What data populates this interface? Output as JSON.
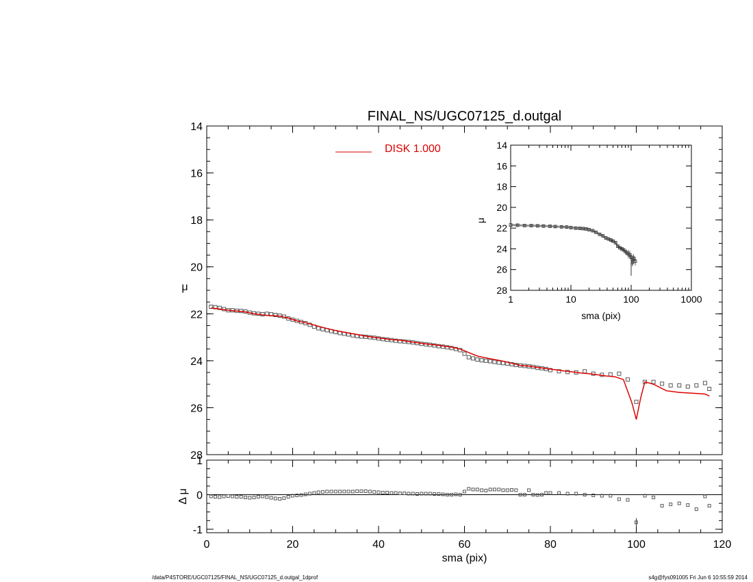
{
  "footer": {
    "left": "/data/P4STORE/UGC07125/FINAL_NS/UGC07125_d.outgal_1dprof",
    "right": "s4g@fys091005  Fri Jun  6 10:55:59 2014"
  },
  "chart_data": [
    {
      "id": "main-profile",
      "type": "scatter",
      "title": "FINAL_NS/UGC07125_d.outgal",
      "xlabel": "",
      "ylabel": "μ",
      "xlim": [
        0,
        120
      ],
      "ylim": [
        28,
        14
      ],
      "y_inverted": true,
      "yticks": [
        14,
        16,
        18,
        20,
        22,
        24,
        26,
        28
      ],
      "xticks": [
        0,
        20,
        40,
        60,
        80,
        100,
        120
      ],
      "legend": {
        "placement": "top-center",
        "entries": [
          {
            "label": "DISK  1.000",
            "color": "#dd0000"
          }
        ]
      },
      "series": [
        {
          "name": "observed",
          "style": "square-marker",
          "color": "#555555",
          "x": [
            1,
            2,
            3,
            4,
            5,
            6,
            7,
            8,
            9,
            10,
            11,
            12,
            13,
            14,
            15,
            16,
            17,
            18,
            19,
            20,
            21,
            22,
            23,
            24,
            25,
            26,
            27,
            28,
            29,
            30,
            31,
            32,
            33,
            34,
            35,
            36,
            37,
            38,
            39,
            40,
            41,
            42,
            43,
            44,
            45,
            46,
            47,
            48,
            49,
            50,
            51,
            52,
            53,
            54,
            55,
            56,
            57,
            58,
            59,
            60,
            61,
            62,
            63,
            64,
            65,
            66,
            67,
            68,
            69,
            70,
            71,
            72,
            73,
            74,
            75,
            76,
            77,
            78,
            79,
            80,
            82,
            84,
            86,
            88,
            90,
            92,
            94,
            96,
            98,
            100,
            102,
            104,
            106,
            108,
            110,
            112,
            114,
            116,
            117
          ],
          "y": [
            21.7,
            21.72,
            21.75,
            21.8,
            21.85,
            21.85,
            21.87,
            21.88,
            21.9,
            21.95,
            21.98,
            22.0,
            22.02,
            22.0,
            22.02,
            22.05,
            22.08,
            22.12,
            22.2,
            22.25,
            22.3,
            22.35,
            22.4,
            22.47,
            22.55,
            22.62,
            22.66,
            22.7,
            22.74,
            22.78,
            22.82,
            22.85,
            22.88,
            22.92,
            22.95,
            22.97,
            22.98,
            23.0,
            23.02,
            23.05,
            23.08,
            23.1,
            23.12,
            23.15,
            23.17,
            23.18,
            23.2,
            23.22,
            23.25,
            23.28,
            23.3,
            23.32,
            23.35,
            23.38,
            23.4,
            23.43,
            23.46,
            23.5,
            23.55,
            23.7,
            23.85,
            23.9,
            23.95,
            23.98,
            24.0,
            24.02,
            24.05,
            24.08,
            24.1,
            24.12,
            24.15,
            24.18,
            24.2,
            24.22,
            24.24,
            24.26,
            24.3,
            24.32,
            24.35,
            24.4,
            24.45,
            24.48,
            24.5,
            24.45,
            24.55,
            24.6,
            24.58,
            24.55,
            24.8,
            25.75,
            24.9,
            24.9,
            24.98,
            25.05,
            25.05,
            25.1,
            25.05,
            24.95,
            25.2
          ]
        },
        {
          "name": "model",
          "style": "line",
          "color": "#dd0000",
          "x": [
            1,
            3,
            5,
            7,
            9,
            11,
            13,
            15,
            17,
            19,
            21,
            23,
            25,
            27,
            29,
            31,
            33,
            35,
            37,
            39,
            41,
            43,
            45,
            47,
            49,
            51,
            53,
            55,
            57,
            59,
            61,
            63,
            65,
            67,
            69,
            71,
            73,
            75,
            77,
            79,
            81,
            83,
            85,
            87,
            89,
            91,
            93,
            95,
            97,
            99,
            100,
            101,
            102,
            104,
            107,
            110,
            113,
            116,
            117
          ],
          "y": [
            21.75,
            21.8,
            21.85,
            21.88,
            21.92,
            22.0,
            22.05,
            22.08,
            22.1,
            22.18,
            22.3,
            22.38,
            22.48,
            22.58,
            22.67,
            22.75,
            22.82,
            22.88,
            22.95,
            23.0,
            23.05,
            23.1,
            23.12,
            23.18,
            23.23,
            23.28,
            23.32,
            23.37,
            23.42,
            23.5,
            23.65,
            23.8,
            23.88,
            23.95,
            24.02,
            24.1,
            24.2,
            24.23,
            24.28,
            24.33,
            24.38,
            24.43,
            24.47,
            24.52,
            24.55,
            24.6,
            24.65,
            24.68,
            24.8,
            25.8,
            26.5,
            25.6,
            24.9,
            25.0,
            25.28,
            25.35,
            25.38,
            25.42,
            25.5
          ]
        }
      ]
    },
    {
      "id": "inset-log",
      "type": "scatter",
      "title": "",
      "xlabel": "sma (pix)",
      "ylabel": "μ",
      "xscale": "log",
      "xlim": [
        1,
        1000
      ],
      "ylim": [
        28,
        14
      ],
      "y_inverted": true,
      "xticks": [
        1,
        10,
        100,
        1000
      ],
      "yticks": [
        14,
        16,
        18,
        20,
        22,
        24,
        26,
        28
      ],
      "series": [
        {
          "name": "observed",
          "style": "square-marker-with-errorbars",
          "color": "#333333",
          "x": [
            1,
            1.3,
            1.7,
            2.2,
            2.8,
            3.5,
            4.5,
            5.5,
            7,
            8.5,
            10,
            12,
            14,
            16,
            18,
            20,
            23,
            26,
            30,
            34,
            38,
            42,
            46,
            50,
            55,
            60,
            65,
            70,
            75,
            80,
            85,
            90,
            95,
            100,
            105,
            110,
            117
          ],
          "y": [
            21.7,
            21.72,
            21.75,
            21.76,
            21.78,
            21.8,
            21.82,
            21.85,
            21.88,
            21.9,
            21.95,
            22.0,
            22.02,
            22.05,
            22.08,
            22.15,
            22.25,
            22.4,
            22.6,
            22.75,
            22.95,
            23.05,
            23.15,
            23.25,
            23.4,
            23.75,
            23.9,
            24.0,
            24.1,
            24.25,
            24.4,
            24.5,
            24.6,
            24.8,
            25.3,
            24.9,
            25.2
          ]
        }
      ]
    },
    {
      "id": "residuals",
      "type": "scatter",
      "title": "",
      "xlabel": "sma (pix)",
      "ylabel": "Δ μ",
      "xlim": [
        0,
        120
      ],
      "ylim": [
        -1.1,
        1.0
      ],
      "xticks": [
        0,
        20,
        40,
        60,
        80,
        100,
        120
      ],
      "yticks": [
        -1,
        0,
        1
      ],
      "reference_line": 0,
      "series": [
        {
          "name": "residual",
          "style": "square-marker",
          "color": "#555555",
          "x": [
            1,
            2,
            3,
            4,
            5,
            6,
            7,
            8,
            9,
            10,
            11,
            12,
            13,
            14,
            15,
            16,
            17,
            18,
            19,
            20,
            21,
            22,
            23,
            24,
            25,
            26,
            27,
            28,
            29,
            30,
            31,
            32,
            33,
            34,
            35,
            36,
            37,
            38,
            39,
            40,
            41,
            42,
            43,
            44,
            45,
            46,
            47,
            48,
            49,
            50,
            51,
            52,
            53,
            54,
            55,
            56,
            57,
            58,
            59,
            60,
            61,
            62,
            63,
            64,
            65,
            66,
            67,
            68,
            69,
            70,
            71,
            72,
            73,
            74,
            75,
            76,
            77,
            78,
            79,
            80,
            82,
            84,
            86,
            88,
            90,
            92,
            94,
            96,
            98,
            100,
            102,
            104,
            106,
            108,
            110,
            112,
            114,
            116,
            117
          ],
          "y": [
            -0.05,
            -0.06,
            -0.07,
            -0.05,
            -0.04,
            -0.05,
            -0.06,
            -0.06,
            -0.08,
            -0.09,
            -0.08,
            -0.06,
            -0.05,
            -0.07,
            -0.09,
            -0.11,
            -0.12,
            -0.1,
            -0.06,
            -0.03,
            -0.02,
            -0.01,
            0.01,
            0.03,
            0.05,
            0.07,
            0.08,
            0.09,
            0.09,
            0.09,
            0.09,
            0.09,
            0.09,
            0.09,
            0.1,
            0.1,
            0.1,
            0.09,
            0.08,
            0.07,
            0.06,
            0.06,
            0.05,
            0.05,
            0.04,
            0.04,
            0.03,
            0.03,
            0.02,
            0.03,
            0.03,
            0.03,
            0.02,
            0.02,
            0.01,
            0.0,
            0.0,
            0.01,
            0.0,
            0.09,
            0.17,
            0.15,
            0.15,
            0.13,
            0.12,
            0.15,
            0.15,
            0.15,
            0.13,
            0.13,
            0.14,
            0.13,
            0.0,
            0.0,
            0.13,
            0.0,
            -0.01,
            0.0,
            0.05,
            0.05,
            0.05,
            0.03,
            0.03,
            0.0,
            -0.02,
            -0.03,
            -0.03,
            -0.13,
            -0.15,
            -0.8,
            -0.03,
            -0.08,
            -0.32,
            -0.28,
            -0.25,
            -0.3,
            -0.42,
            -0.05,
            -0.32
          ]
        }
      ]
    }
  ]
}
